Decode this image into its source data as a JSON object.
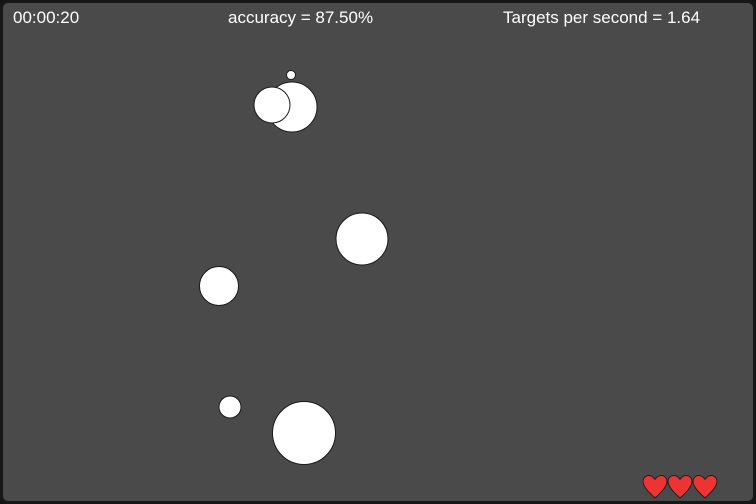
{
  "hud": {
    "timer": "00:00:20",
    "accuracy": "accuracy = 87.50%",
    "targets_per_second": "Targets per second = 1.64"
  },
  "targets": [
    {
      "id": "t1",
      "icon": "target-circle"
    },
    {
      "id": "t2",
      "icon": "target-circle"
    },
    {
      "id": "t3",
      "icon": "target-circle"
    },
    {
      "id": "t4",
      "icon": "target-circle"
    },
    {
      "id": "t5",
      "icon": "target-circle"
    },
    {
      "id": "t6",
      "icon": "target-circle"
    },
    {
      "id": "t7",
      "icon": "target-circle"
    }
  ],
  "lives": {
    "remaining": 3,
    "icon": "heart-icon",
    "color": "#ee3333"
  },
  "colors": {
    "background": "#4a4a4a",
    "target_fill": "#ffffff",
    "target_stroke": "#1a1a1a",
    "hud_text": "#ffffff"
  }
}
